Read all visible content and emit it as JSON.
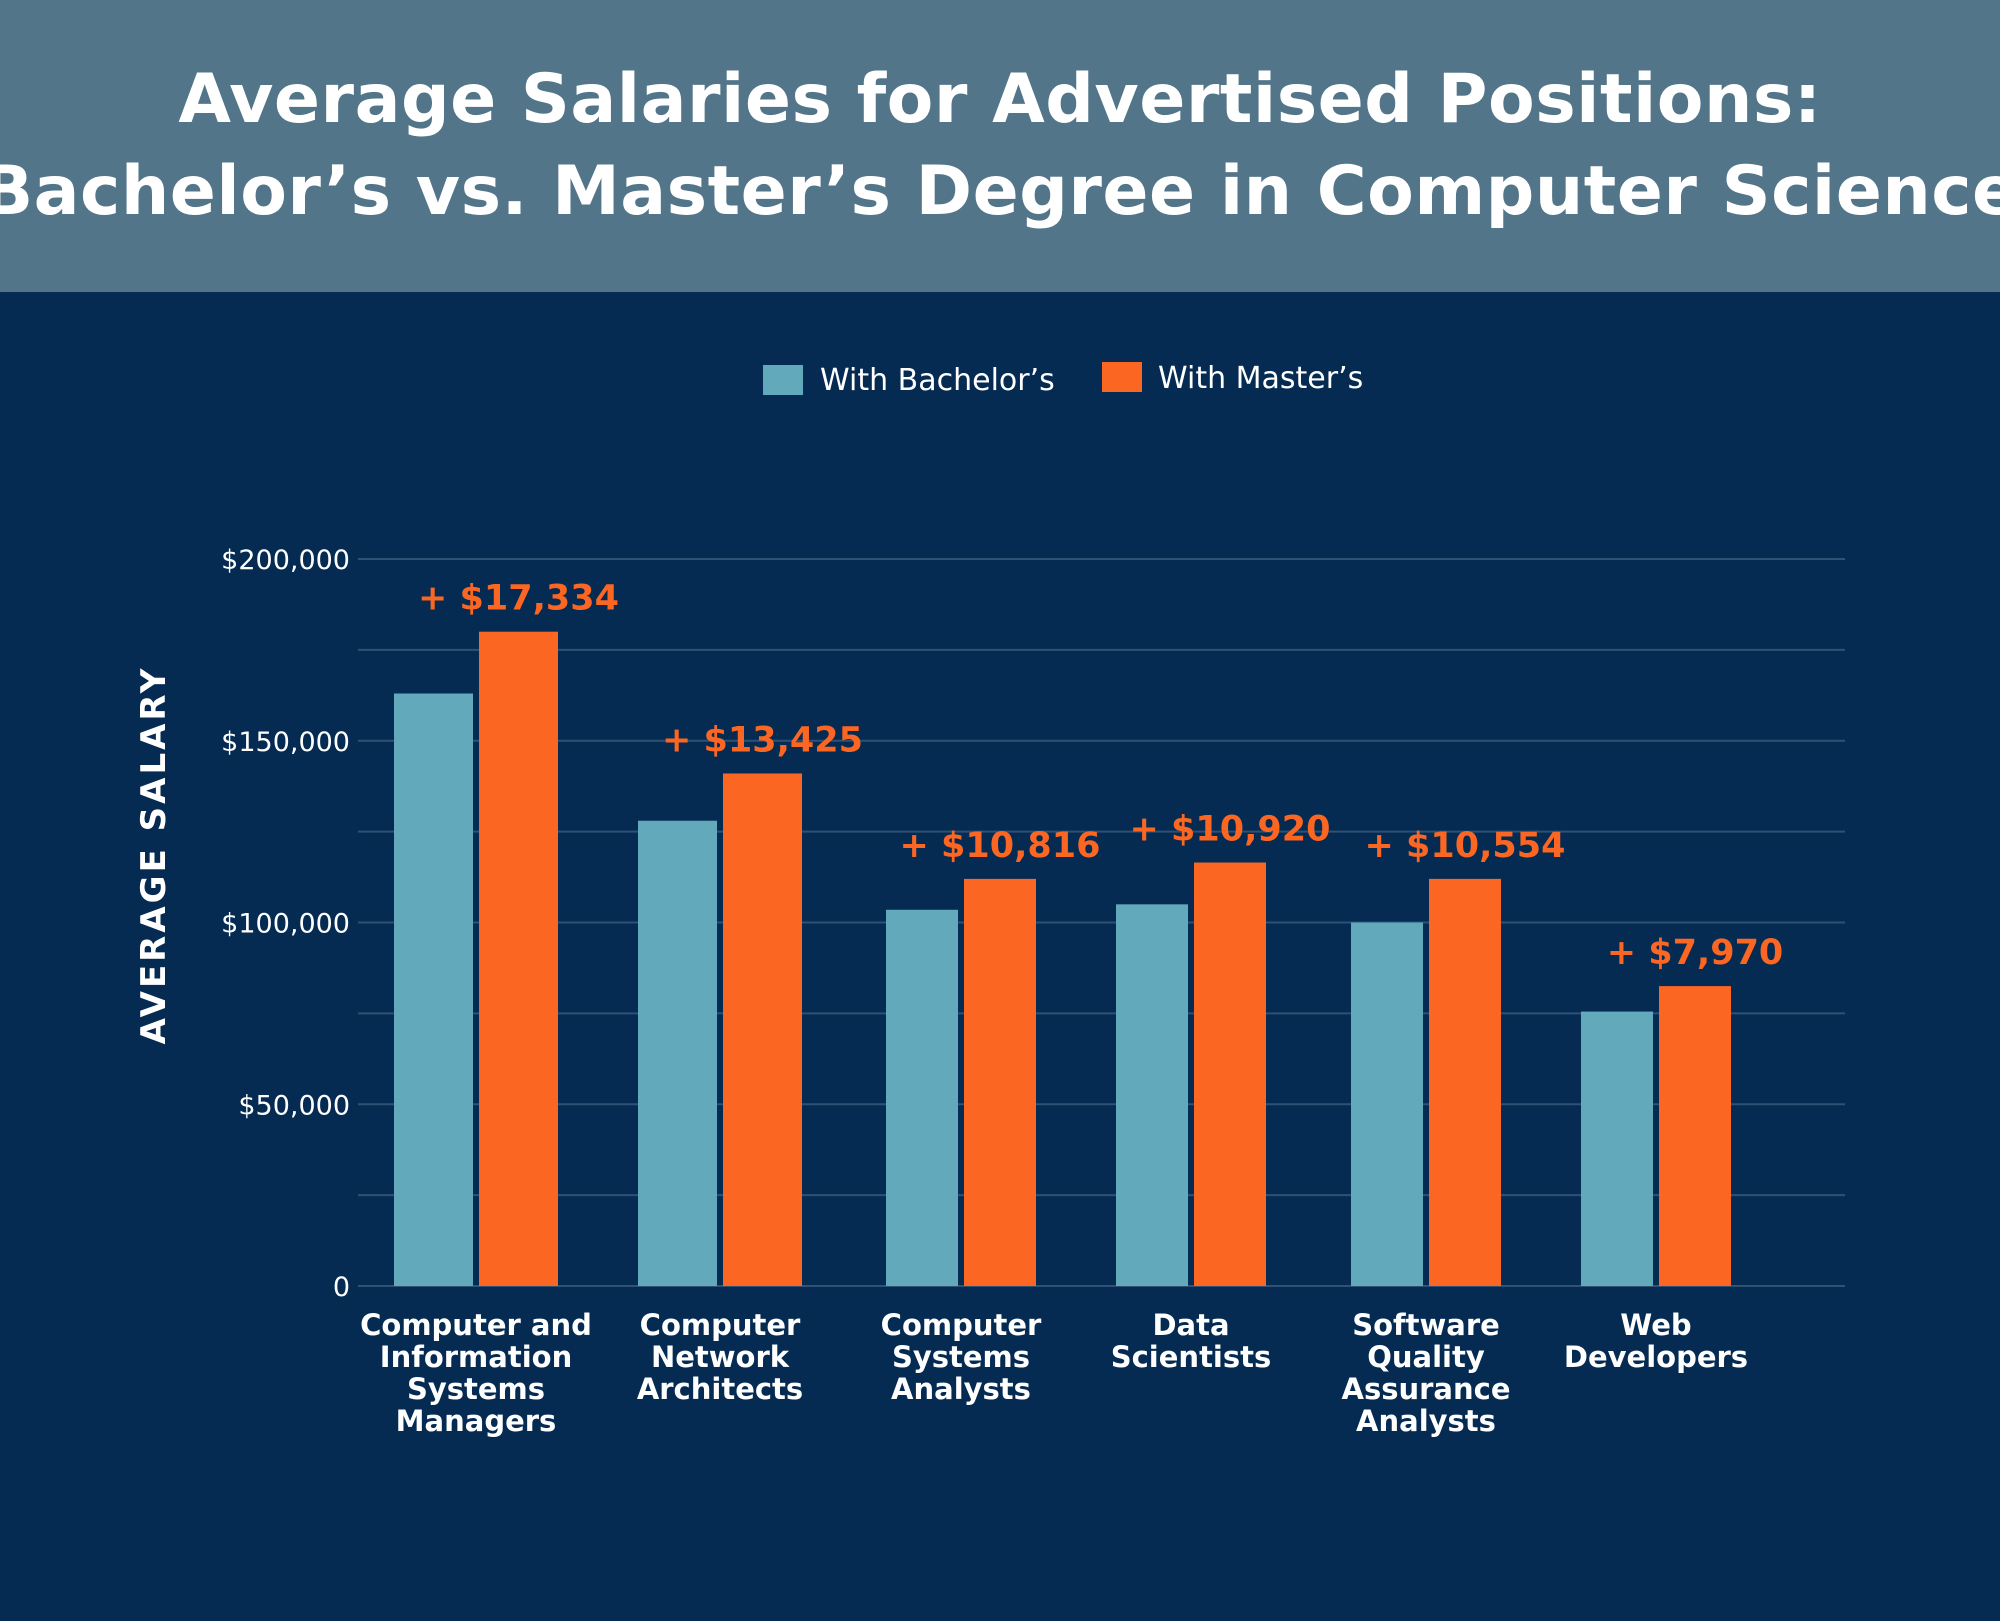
{
  "colors": {
    "header_bg": "#527589",
    "chart_bg": "#052b52",
    "bachelors": "#62aabb",
    "masters": "#fb6722",
    "gridline": "#2f5173",
    "text": "#ffffff",
    "diff_label": "#fb6722"
  },
  "chart_data": {
    "type": "bar",
    "title": "Average Salaries for Advertised Positions:",
    "subtitle": "Bachelor’s vs. Master’s Degree in Computer Science",
    "xlabel": "",
    "ylabel": "AVERAGE SALARY",
    "ylim": [
      0,
      200000
    ],
    "yticks": [
      0,
      50000,
      100000,
      150000,
      200000
    ],
    "ytick_labels": [
      "0",
      "$50,000",
      "$100,000",
      "$150,000",
      "$200,000"
    ],
    "grid": true,
    "legend_position": "top-center",
    "categories": [
      "Computer and Information Systems Managers",
      "Computer Network Architects",
      "Computer Systems Analysts",
      "Data Scientists",
      "Software Quality Assurance Analysts",
      "Web Developers"
    ],
    "category_label_lines": [
      [
        "Computer and",
        "Information",
        "Systems",
        "Managers"
      ],
      [
        "Computer",
        "Network",
        "Architects"
      ],
      [
        "Computer",
        "Systems",
        "Analysts"
      ],
      [
        "Data",
        "Scientists"
      ],
      [
        "Software",
        "Quality",
        "Assurance",
        "Analysts"
      ],
      [
        "Web",
        "Developers"
      ]
    ],
    "series": [
      {
        "name": "With Bachelor’s",
        "color": "#62aabb",
        "values": [
          163000,
          128000,
          103500,
          105000,
          100000,
          75500
        ]
      },
      {
        "name": "With Master’s",
        "color": "#fb6722",
        "values": [
          180000,
          141000,
          112000,
          116500,
          112000,
          82500
        ]
      }
    ],
    "annotations": [
      "+ $17,334",
      "+ $13,425",
      "+ $10,816",
      "+ $10,920",
      "+ $10,554",
      "+ $7,970"
    ]
  }
}
